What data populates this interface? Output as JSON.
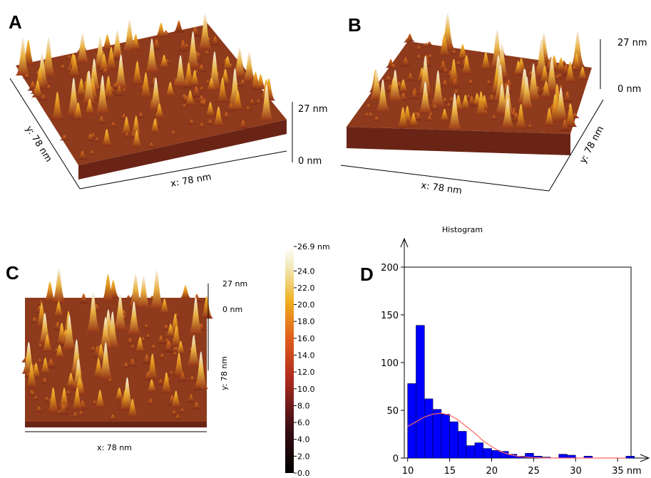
{
  "panels": [
    {
      "letter": "A",
      "x_label": "x: 78 nm",
      "y_label": "y: 78 nm",
      "z_top": "27 nm",
      "z_bottom": "0 nm"
    },
    {
      "letter": "B",
      "x_label": "x: 78 nm",
      "y_label": "y: 78 nm",
      "z_top": "27 nm",
      "z_bottom": "0 nm"
    },
    {
      "letter": "C",
      "x_label": "x: 78 nm",
      "y_label": "y: 78 nm",
      "z_top": "27 nm",
      "z_bottom": "0 nm"
    }
  ],
  "colorbar": {
    "lim": [
      0,
      26.9
    ],
    "ticks": [
      {
        "value": 26.9,
        "label": "26.9 nm"
      },
      {
        "value": 24,
        "label": "24.0"
      },
      {
        "value": 22,
        "label": "22.0"
      },
      {
        "value": 20,
        "label": "20.0"
      },
      {
        "value": 18,
        "label": "18.0"
      },
      {
        "value": 16,
        "label": "16.0"
      },
      {
        "value": 14,
        "label": "14.0"
      },
      {
        "value": 12,
        "label": "12.0"
      },
      {
        "value": 10,
        "label": "10.0"
      },
      {
        "value": 8,
        "label": "8.0"
      },
      {
        "value": 6,
        "label": "6.0"
      },
      {
        "value": 4,
        "label": "4.0"
      },
      {
        "value": 2,
        "label": "2.0"
      },
      {
        "value": 0,
        "label": "0.0"
      }
    ]
  },
  "chart_data": {
    "type": "histogram",
    "label": "D",
    "title": "Histogram",
    "bins": [
      10,
      11,
      12,
      13,
      14,
      15,
      16,
      17,
      18,
      19,
      20,
      21,
      22,
      23,
      24,
      25,
      26,
      27,
      28,
      29,
      30,
      31,
      32,
      33,
      34,
      35,
      36,
      37
    ],
    "values": [
      78,
      139,
      62,
      51,
      46,
      38,
      28,
      13,
      16,
      10,
      8,
      7,
      4,
      2,
      5,
      2,
      1,
      0,
      4,
      3,
      0,
      2,
      0,
      0,
      0,
      0,
      2
    ],
    "color": "#0000ff",
    "fit": {
      "x": [
        10,
        11,
        12,
        13,
        14,
        15,
        16,
        17,
        18,
        19,
        20,
        21,
        22,
        23,
        24,
        25,
        26,
        27,
        28,
        29,
        30,
        31,
        32,
        33,
        34,
        35,
        36
      ],
      "values": [
        33,
        38,
        43,
        46,
        47,
        45,
        40,
        33,
        26,
        18,
        12,
        7,
        4,
        2,
        1,
        0.5,
        0.2,
        0,
        0,
        0,
        0,
        0,
        0,
        0,
        0,
        0,
        0
      ],
      "color": "#ff6666"
    },
    "xlim": [
      9.6,
      36.6
    ],
    "ylim": [
      0,
      200
    ],
    "xticks": [
      10,
      15,
      20,
      25,
      30,
      {
        "value": 35,
        "label": "35 nm"
      }
    ],
    "yticks": [
      0,
      50,
      100,
      150,
      200
    ]
  }
}
